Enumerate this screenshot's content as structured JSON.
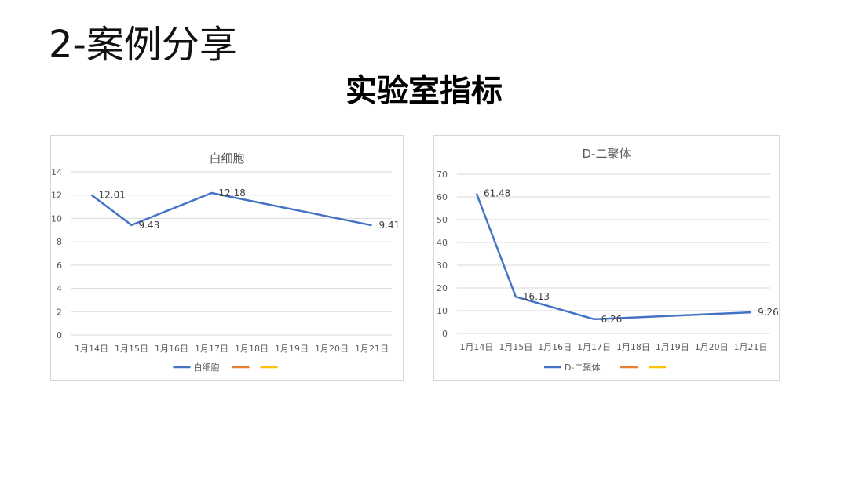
{
  "slide": {
    "title": "2-案例分享",
    "subtitle": "实验室指标"
  },
  "chart_data": [
    {
      "type": "line",
      "title": "白细胞",
      "categories": [
        "1月14日",
        "1月15日",
        "1月16日",
        "1月17日",
        "1月18日",
        "1月19日",
        "1月20日",
        "1月21日"
      ],
      "y_ticks": [
        0,
        2,
        4,
        6,
        8,
        10,
        12,
        14
      ],
      "ylim": [
        0,
        14
      ],
      "grid": true,
      "legend_position": "bottom",
      "series": [
        {
          "name": "白细胞",
          "color": "#4472C4",
          "points": [
            {
              "x": "1月14日",
              "y": 12.01,
              "label": "12.01"
            },
            {
              "x": "1月15日",
              "y": 9.43,
              "label": "9.43"
            },
            {
              "x": "1月17日",
              "y": 12.18,
              "label": "12.18"
            },
            {
              "x": "1月21日",
              "y": 9.41,
              "label": "9.41"
            }
          ]
        },
        {
          "name": "",
          "color": "#ED7D31",
          "points": []
        },
        {
          "name": "",
          "color": "#FFC000",
          "points": []
        }
      ]
    },
    {
      "type": "line",
      "title": "D-二聚体",
      "categories": [
        "1月14日",
        "1月15日",
        "1月16日",
        "1月17日",
        "1月18日",
        "1月19日",
        "1月20日",
        "1月21日"
      ],
      "y_ticks": [
        0,
        10,
        20,
        30,
        40,
        50,
        60,
        70
      ],
      "ylim": [
        0,
        70
      ],
      "grid": true,
      "legend_position": "bottom",
      "series": [
        {
          "name": "D-二聚体",
          "color": "#4472C4",
          "points": [
            {
              "x": "1月14日",
              "y": 61.48,
              "label": "61.48"
            },
            {
              "x": "1月15日",
              "y": 16.13,
              "label": "16.13"
            },
            {
              "x": "1月17日",
              "y": 6.26,
              "label": "6.26"
            },
            {
              "x": "1月21日",
              "y": 9.26,
              "label": "9.26"
            }
          ]
        },
        {
          "name": "",
          "color": "#ED7D31",
          "points": []
        },
        {
          "name": "",
          "color": "#FFC000",
          "points": []
        }
      ]
    }
  ]
}
